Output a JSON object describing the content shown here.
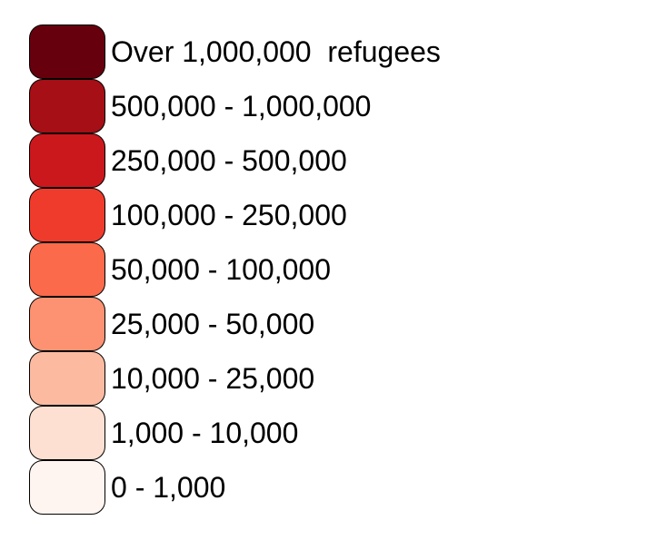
{
  "legend": {
    "items": [
      {
        "label": "Over 1,000,000  refugees",
        "color": "#67000d"
      },
      {
        "label": "500,000 - 1,000,000",
        "color": "#a50f15"
      },
      {
        "label": "250,000 - 500,000",
        "color": "#cb181d"
      },
      {
        "label": "100,000 - 250,000",
        "color": "#ef3b2c"
      },
      {
        "label": "50,000 - 100,000",
        "color": "#fb6a4a"
      },
      {
        "label": "25,000 - 50,000",
        "color": "#fc9272"
      },
      {
        "label": "10,000 - 25,000",
        "color": "#fcbba1"
      },
      {
        "label": "1,000 - 10,000",
        "color": "#fee0d2"
      },
      {
        "label": "0 - 1,000",
        "color": "#fff5f0"
      }
    ]
  }
}
